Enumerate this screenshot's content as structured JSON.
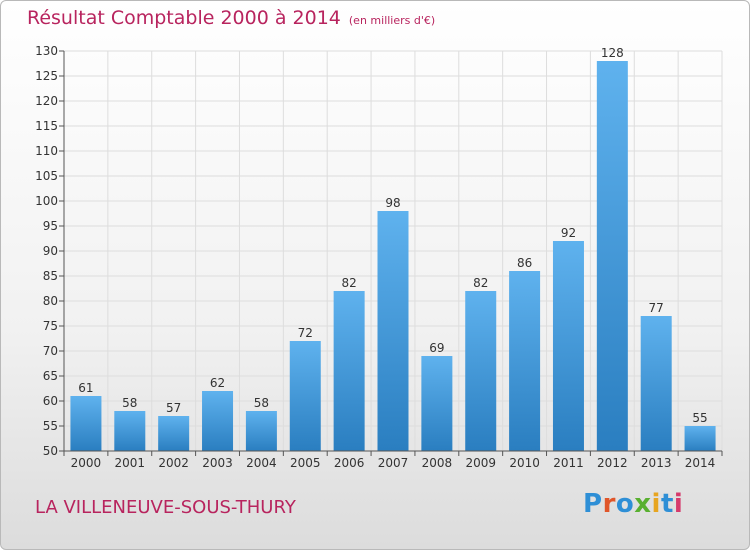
{
  "header": {
    "title": "Résultat Comptable 2000 à 2014",
    "subtitle": "(en milliers d'€)"
  },
  "footer": {
    "commune": "LA VILLENEUVE-SOUS-THURY",
    "logo_letters": [
      "P",
      "r",
      "o",
      "x",
      "i",
      "t",
      "i"
    ],
    "logo_colors": [
      "#2e8fd6",
      "#e0562a",
      "#2e8fd6",
      "#59b030",
      "#e7a520",
      "#2e8fd6",
      "#d63a6c"
    ]
  },
  "chart_data": {
    "type": "bar",
    "title": "Résultat Comptable 2000 à 2014",
    "subtitle": "(en milliers d'€)",
    "categories": [
      "2000",
      "2001",
      "2002",
      "2003",
      "2004",
      "2005",
      "2006",
      "2007",
      "2008",
      "2009",
      "2010",
      "2011",
      "2012",
      "2013",
      "2014"
    ],
    "values": [
      61,
      58,
      57,
      62,
      58,
      72,
      82,
      98,
      69,
      82,
      86,
      92,
      128,
      77,
      55
    ],
    "ylim": [
      50,
      130
    ],
    "yticks": [
      50,
      55,
      60,
      65,
      70,
      75,
      80,
      85,
      90,
      95,
      100,
      105,
      110,
      115,
      120,
      125,
      130
    ],
    "grid": true,
    "data_labels": true,
    "colors": {
      "bar_light": "#5fb2ee",
      "bar_dark": "#2a7ec0",
      "grid": "#dddddd",
      "axis": "#555555",
      "text": "#333333"
    }
  }
}
